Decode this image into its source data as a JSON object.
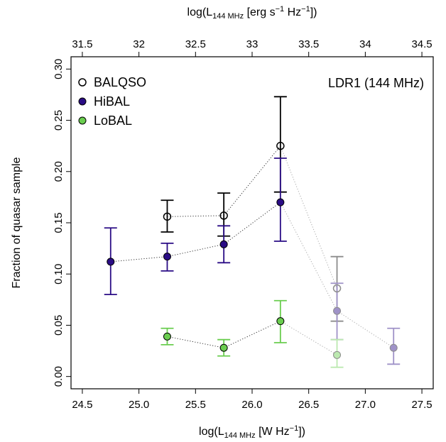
{
  "chart_data": {
    "type": "scatter",
    "annotation": "LDR1 (144 MHz)",
    "ylabel": "Fraction of quasar sample",
    "xlabel": {
      "pre": "log(L",
      "sub": "144 MHz",
      "post": " [W Hz",
      "sup": "−1",
      "end": "])"
    },
    "x2label": {
      "pre": "log(L",
      "sub": "144 MHz",
      "post": " [erg s",
      "sup1": "−1",
      "mid": " Hz",
      "sup2": "−1",
      "end": "])"
    },
    "xlim": [
      24.4,
      27.6
    ],
    "ylim": [
      -0.012,
      0.312
    ],
    "x_ticks": [
      "24.5",
      "25.0",
      "25.5",
      "26.0",
      "26.5",
      "27.0",
      "27.5"
    ],
    "y_ticks": [
      "0.00",
      "0.05",
      "0.10",
      "0.15",
      "0.20",
      "0.25",
      "0.30"
    ],
    "x2_ticks": [
      "31.5",
      "32",
      "32.5",
      "33",
      "33.5",
      "34",
      "34.5"
    ],
    "x2_offset": 7.0,
    "series": [
      {
        "name": "BALQSO",
        "marker": "open",
        "color": "#000000",
        "points": [
          {
            "x": 25.25,
            "y": 0.156,
            "lo": 0.141,
            "hi": 0.172,
            "faded": false
          },
          {
            "x": 25.75,
            "y": 0.157,
            "lo": 0.137,
            "hi": 0.179,
            "faded": false
          },
          {
            "x": 26.25,
            "y": 0.225,
            "lo": 0.18,
            "hi": 0.273,
            "faded": false
          },
          {
            "x": 26.75,
            "y": 0.086,
            "lo": 0.054,
            "hi": 0.117,
            "faded": true
          }
        ]
      },
      {
        "name": "HiBAL",
        "marker": "filled",
        "color": "#2a0c85",
        "points": [
          {
            "x": 24.75,
            "y": 0.112,
            "lo": 0.08,
            "hi": 0.145,
            "faded": false
          },
          {
            "x": 25.25,
            "y": 0.117,
            "lo": 0.103,
            "hi": 0.13,
            "faded": false
          },
          {
            "x": 25.75,
            "y": 0.129,
            "lo": 0.111,
            "hi": 0.147,
            "faded": false
          },
          {
            "x": 26.25,
            "y": 0.17,
            "lo": 0.132,
            "hi": 0.213,
            "faded": false
          },
          {
            "x": 26.75,
            "y": 0.064,
            "lo": 0.036,
            "hi": 0.091,
            "faded": true
          },
          {
            "x": 27.25,
            "y": 0.028,
            "lo": 0.012,
            "hi": 0.047,
            "faded": true
          }
        ]
      },
      {
        "name": "LoBAL",
        "marker": "filled",
        "color": "#6acd4f",
        "points": [
          {
            "x": 25.25,
            "y": 0.039,
            "lo": 0.031,
            "hi": 0.047,
            "faded": false
          },
          {
            "x": 25.75,
            "y": 0.028,
            "lo": 0.02,
            "hi": 0.036,
            "faded": false
          },
          {
            "x": 26.25,
            "y": 0.054,
            "lo": 0.033,
            "hi": 0.074,
            "faded": false
          },
          {
            "x": 26.75,
            "y": 0.021,
            "lo": 0.009,
            "hi": 0.036,
            "faded": true
          }
        ]
      }
    ],
    "legend_position": "top-left"
  }
}
